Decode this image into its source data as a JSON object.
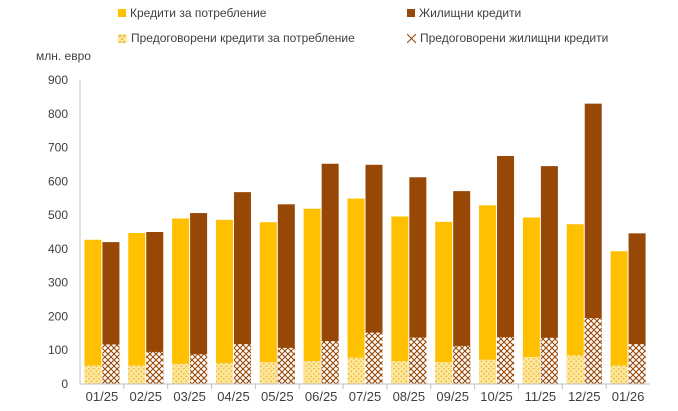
{
  "chart_data": {
    "type": "bar",
    "ylabel": "млн. евро",
    "ylim": [
      0,
      900
    ],
    "yticks": [
      0,
      100,
      200,
      300,
      400,
      500,
      600,
      700,
      800,
      900
    ],
    "categories": [
      "01/25",
      "02/25",
      "03/25",
      "04/25",
      "05/25",
      "06/25",
      "07/25",
      "08/25",
      "09/25",
      "10/25",
      "11/25",
      "12/25",
      "01/26"
    ],
    "series": [
      {
        "name": "Кредити за потребление",
        "color": "#FFC000",
        "pattern": "solid",
        "group": "consumer",
        "values": [
          427,
          447,
          490,
          486,
          479,
          519,
          549,
          496,
          480,
          529,
          493,
          473,
          393
        ]
      },
      {
        "name": "Предоговорени кредити за потребление",
        "color": "#FFE699",
        "pattern": "dotted",
        "group": "consumer",
        "values": [
          55,
          55,
          60,
          62,
          65,
          68,
          78,
          68,
          65,
          72,
          80,
          85,
          55
        ]
      },
      {
        "name": "Жилищни кредити",
        "color": "#974706",
        "pattern": "solid",
        "group": "housing",
        "values": [
          420,
          450,
          506,
          568,
          532,
          652,
          649,
          612,
          571,
          675,
          645,
          830,
          446
        ]
      },
      {
        "name": "Предоговорени жилищни кредити",
        "color": "#974706",
        "pattern": "cross",
        "group": "housing",
        "values": [
          117,
          95,
          88,
          118,
          107,
          127,
          152,
          138,
          113,
          139,
          137,
          195,
          118
        ]
      }
    ],
    "note": "The solid bar height is the total; the patterned part is drawn at the bottom of the same bar.",
    "grid": false,
    "legend_position": "top"
  }
}
